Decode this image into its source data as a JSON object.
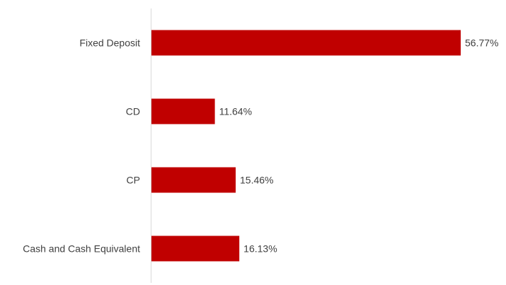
{
  "chart_data": {
    "type": "bar",
    "orientation": "horizontal",
    "categories": [
      "Fixed Deposit",
      "CD",
      "CP",
      "Cash and Cash Equivalent"
    ],
    "values": [
      56.77,
      11.64,
      15.46,
      16.13
    ],
    "value_labels": [
      "56.77%",
      "11.64%",
      "15.46%",
      "16.13%"
    ],
    "unit": "%",
    "title": "",
    "xlabel": "",
    "ylabel": "",
    "xlim": [
      0,
      56.77
    ],
    "grid": false,
    "legend": "none",
    "colors": {
      "bar": "#C00000",
      "axis": "#D9D9D9",
      "text": "#404040"
    }
  }
}
